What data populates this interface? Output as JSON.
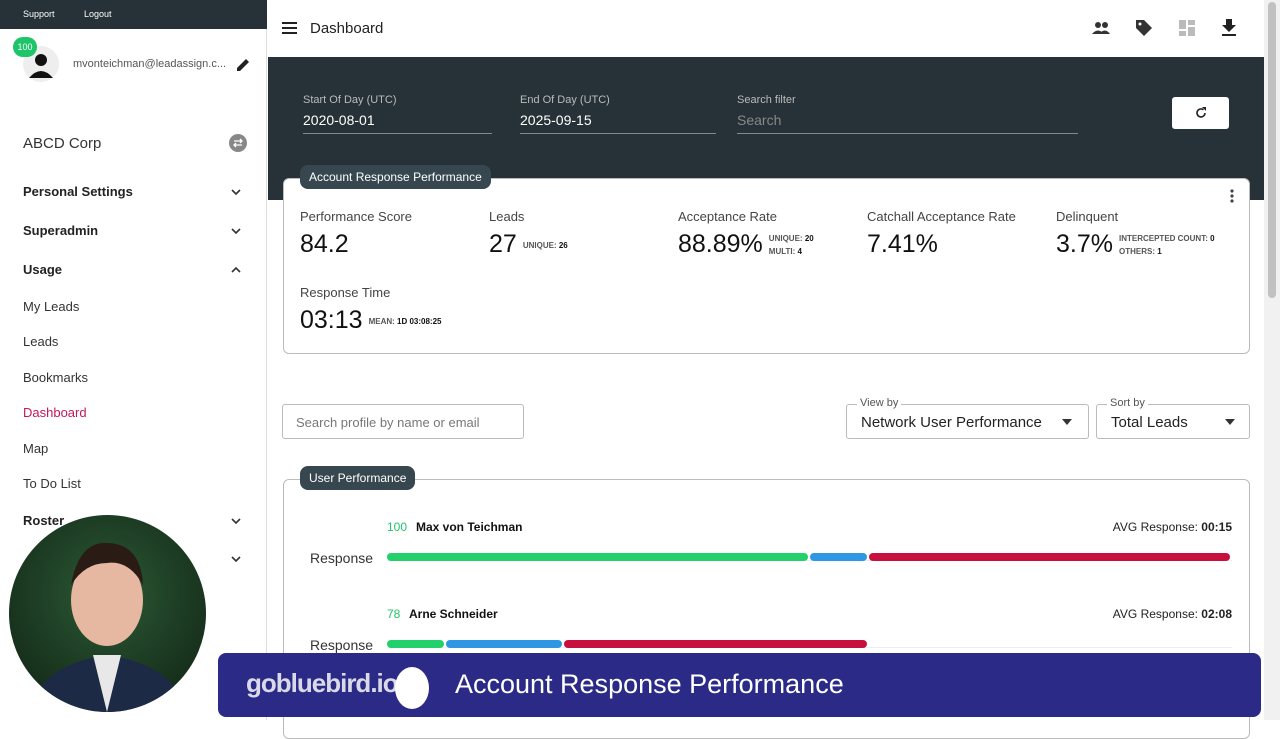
{
  "sidebar": {
    "links": [
      "Support",
      "Logout"
    ],
    "badge": "100",
    "email": "mvonteichman@leadassign.c...",
    "org": "ABCD Corp",
    "sections": [
      "Personal Settings",
      "Superadmin",
      "Usage"
    ],
    "usage_items": [
      "My Leads",
      "Leads",
      "Bookmarks",
      "Dashboard",
      "Map",
      "To Do List"
    ],
    "roster": "Roster"
  },
  "header": {
    "title": "Dashboard"
  },
  "filters": [
    {
      "label": "Start Of Day (UTC)",
      "value": "2020-08-01"
    },
    {
      "label": "End Of Day (UTC)",
      "value": "2025-09-15"
    },
    {
      "label": "Search filter",
      "placeholder": "Search"
    }
  ],
  "metrics": {
    "title": "Account Response Performance",
    "items": [
      {
        "label": "Performance Score",
        "value": "84.2",
        "notes": []
      },
      {
        "label": "Leads",
        "value": "27",
        "notes": [
          {
            "label": "UNIQUE:",
            "value": "26"
          }
        ]
      },
      {
        "label": "Acceptance Rate",
        "value": "88.89%",
        "notes": [
          {
            "label": "UNIQUE:",
            "value": "20"
          },
          {
            "label": "MULTI:",
            "value": "4"
          }
        ]
      },
      {
        "label": "Catchall Acceptance Rate",
        "value": "7.41%",
        "notes": []
      },
      {
        "label": "Delinquent",
        "value": "3.7%",
        "notes": [
          {
            "label": "INTERCEPTED COUNT:",
            "value": "0"
          },
          {
            "label": "OTHERS:",
            "value": "1"
          }
        ]
      },
      {
        "label": "Response Time",
        "value": "03:13",
        "notes": [
          {
            "label": "MEAN:",
            "value": "1D 03:08:25"
          }
        ]
      }
    ]
  },
  "controls": {
    "search_placeholder": "Search profile by name or email",
    "view_by": {
      "label": "View by",
      "value": "Network User Performance"
    },
    "sort_by": {
      "label": "Sort by",
      "value": "Total Leads"
    }
  },
  "users_panel": {
    "title": "User Performance",
    "users": [
      {
        "score": "100",
        "name": "Max von Teichman",
        "avg_label": "AVG Response:",
        "avg": "00:15",
        "row_label": "Response",
        "segments": [
          50,
          7,
          43
        ]
      },
      {
        "score": "78",
        "name": "Arne Schneider",
        "avg_label": "AVG Response:",
        "avg": "02:08",
        "row_label": "Response",
        "segments": [
          7,
          14,
          36
        ]
      }
    ]
  },
  "banner": {
    "brand": "gobluebird.io",
    "text": "Account Response Performance"
  }
}
